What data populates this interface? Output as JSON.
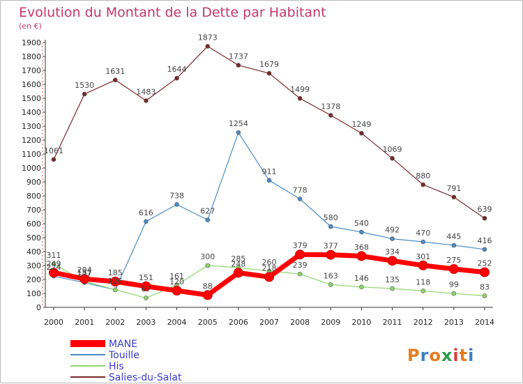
{
  "title": "Evolution du Montant de la Dette par Habitant",
  "subtitle": "(en €)",
  "logo": {
    "text": "Proxiti",
    "colors": [
      "#e87b1e",
      "#3d7ec4",
      "#e87b1e",
      "#2e9a4a",
      "#d93b3b",
      "#e87b1e",
      "#3d7ec4"
    ]
  },
  "chart_data": {
    "type": "line",
    "title": "Evolution du Montant de la Dette par Habitant",
    "subtitle": "(en €)",
    "xlabel": "",
    "ylabel": "",
    "x": [
      2000,
      2001,
      2002,
      2003,
      2004,
      2005,
      2006,
      2007,
      2008,
      2009,
      2010,
      2011,
      2012,
      2013,
      2014
    ],
    "ylim": [
      0,
      1900
    ],
    "yticks": [
      0,
      100,
      200,
      300,
      400,
      500,
      600,
      700,
      800,
      900,
      1000,
      1100,
      1200,
      1300,
      1400,
      1500,
      1600,
      1700,
      1800,
      1900
    ],
    "grid": false,
    "legend_position": "bottom-left",
    "series": [
      {
        "name": "MANE",
        "color": "#ff0000",
        "values": [
          249,
          204,
          185,
          151,
          120,
          88,
          248,
          218,
          379,
          377,
          368,
          334,
          301,
          275,
          252
        ]
      },
      {
        "name": "Touille",
        "color": "#4a8cc7",
        "values": [
          224,
          177,
          126,
          616,
          738,
          627,
          1254,
          911,
          778,
          580,
          540,
          492,
          470,
          445,
          416
        ]
      },
      {
        "name": "His",
        "color": "#8dd66a",
        "values": [
          311,
          187,
          126,
          67,
          161,
          300,
          285,
          260,
          239,
          163,
          146,
          135,
          118,
          99,
          83
        ]
      },
      {
        "name": "Salies-du-Salat",
        "color": "#7a2828",
        "values": [
          1061,
          1530,
          1631,
          1483,
          1644,
          1873,
          1737,
          1679,
          1499,
          1378,
          1249,
          1069,
          880,
          791,
          639
        ]
      }
    ]
  }
}
